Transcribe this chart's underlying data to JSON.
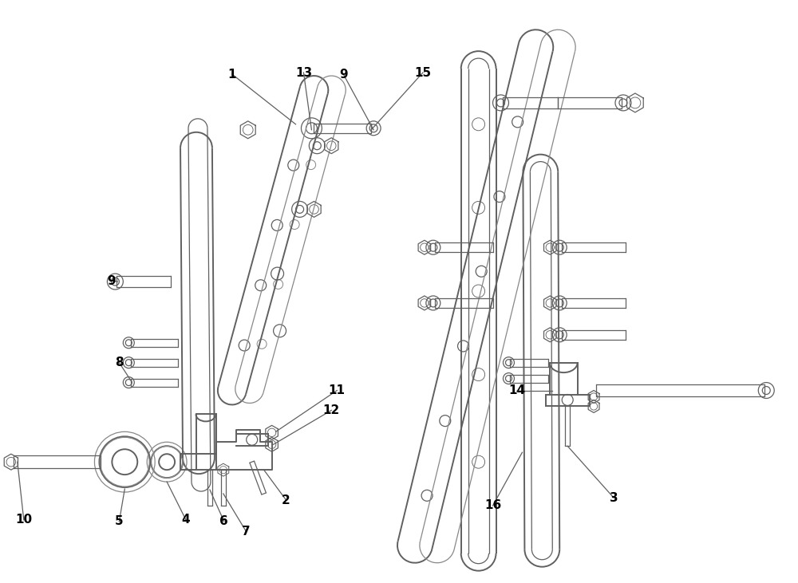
{
  "background_color": "#ffffff",
  "line_color": "#606060",
  "label_color": "#000000",
  "fig_width": 10.0,
  "fig_height": 7.31,
  "lw_main": 1.4,
  "lw_thin": 0.9,
  "lw_slot": 0.8
}
